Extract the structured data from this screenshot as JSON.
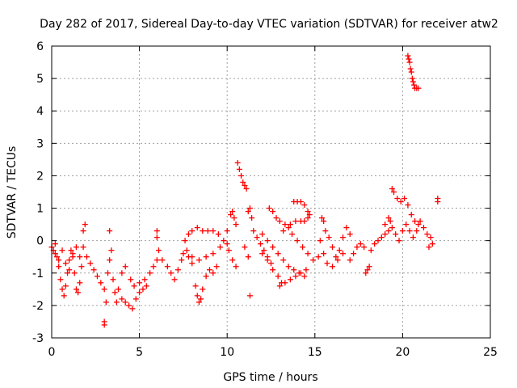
{
  "chart_data": {
    "type": "scatter",
    "title": "Day 282 of 2017, Sidereal Day-to-day VTEC variation (SDTVAR) for receiver atw2",
    "xlabel": "GPS time / hours",
    "ylabel": "SDTVAR / TECUs",
    "xlim": [
      0,
      25
    ],
    "ylim": [
      -3,
      6
    ],
    "xticks": [
      0,
      5,
      10,
      15,
      20,
      25
    ],
    "yticks": [
      -3,
      -2,
      -1,
      0,
      1,
      2,
      3,
      4,
      5,
      6
    ],
    "grid": true,
    "marker": "+",
    "color": "#ff0000",
    "series": [
      {
        "name": "atw2",
        "points": [
          [
            0.0,
            -0.2
          ],
          [
            0.1,
            -0.3
          ],
          [
            0.2,
            -0.1
          ],
          [
            0.3,
            -0.5
          ],
          [
            0.4,
            -0.8
          ],
          [
            0.5,
            -1.2
          ],
          [
            0.6,
            -1.5
          ],
          [
            0.7,
            -1.7
          ],
          [
            0.8,
            -1.4
          ],
          [
            0.9,
            -1.0
          ],
          [
            1.0,
            -0.6
          ],
          [
            1.1,
            -0.3
          ],
          [
            1.2,
            -0.5
          ],
          [
            1.3,
            -1.0
          ],
          [
            1.4,
            -1.5
          ],
          [
            1.5,
            -1.6
          ],
          [
            1.6,
            -1.3
          ],
          [
            1.7,
            -0.8
          ],
          [
            0.2,
            -0.4
          ],
          [
            0.4,
            -0.6
          ],
          [
            0.6,
            -0.3
          ],
          [
            0.8,
            -0.7
          ],
          [
            1.0,
            -0.9
          ],
          [
            1.2,
            -0.4
          ],
          [
            1.4,
            -0.2
          ],
          [
            1.6,
            -0.5
          ],
          [
            1.8,
            0.3
          ],
          [
            1.9,
            0.5
          ],
          [
            1.8,
            -0.2
          ],
          [
            2.0,
            -0.5
          ],
          [
            2.2,
            -0.7
          ],
          [
            2.4,
            -0.9
          ],
          [
            2.6,
            -1.1
          ],
          [
            2.8,
            -1.3
          ],
          [
            3.0,
            -1.5
          ],
          [
            3.1,
            -1.9
          ],
          [
            3.0,
            -2.5
          ],
          [
            3.0,
            -2.6
          ],
          [
            3.2,
            -1.0
          ],
          [
            3.3,
            -0.6
          ],
          [
            3.4,
            -0.3
          ],
          [
            3.3,
            0.3
          ],
          [
            3.5,
            -1.2
          ],
          [
            3.6,
            -1.6
          ],
          [
            3.7,
            -1.9
          ],
          [
            3.8,
            -1.5
          ],
          [
            4.0,
            -1.8
          ],
          [
            4.2,
            -1.9
          ],
          [
            4.4,
            -2.0
          ],
          [
            4.6,
            -2.1
          ],
          [
            4.8,
            -1.8
          ],
          [
            5.0,
            -1.6
          ],
          [
            5.2,
            -1.5
          ],
          [
            5.4,
            -1.4
          ],
          [
            4.0,
            -1.0
          ],
          [
            4.2,
            -0.8
          ],
          [
            4.5,
            -1.2
          ],
          [
            4.7,
            -1.4
          ],
          [
            5.0,
            -1.3
          ],
          [
            5.3,
            -1.2
          ],
          [
            5.6,
            -1.0
          ],
          [
            5.8,
            -0.8
          ],
          [
            6.0,
            -0.6
          ],
          [
            6.0,
            0.1
          ],
          [
            6.0,
            0.3
          ],
          [
            6.1,
            -0.3
          ],
          [
            6.3,
            -0.6
          ],
          [
            6.6,
            -0.8
          ],
          [
            6.8,
            -1.0
          ],
          [
            7.0,
            -1.2
          ],
          [
            7.2,
            -0.9
          ],
          [
            7.4,
            -0.6
          ],
          [
            7.5,
            -0.4
          ],
          [
            7.8,
            -0.5
          ],
          [
            8.0,
            -0.7
          ],
          [
            8.2,
            -1.4
          ],
          [
            8.3,
            -1.7
          ],
          [
            8.4,
            -1.9
          ],
          [
            8.5,
            -1.8
          ],
          [
            8.6,
            -1.5
          ],
          [
            8.8,
            -1.1
          ],
          [
            9.0,
            -0.9
          ],
          [
            9.2,
            -1.0
          ],
          [
            9.4,
            -0.8
          ],
          [
            7.6,
            0.0
          ],
          [
            7.8,
            0.2
          ],
          [
            8.0,
            0.3
          ],
          [
            8.3,
            0.4
          ],
          [
            8.6,
            0.3
          ],
          [
            8.9,
            0.3
          ],
          [
            9.2,
            0.3
          ],
          [
            9.5,
            0.2
          ],
          [
            9.8,
            0.0
          ],
          [
            7.7,
            -0.3
          ],
          [
            8.0,
            -0.5
          ],
          [
            8.4,
            -0.6
          ],
          [
            8.8,
            -0.5
          ],
          [
            9.2,
            -0.4
          ],
          [
            9.6,
            -0.2
          ],
          [
            10.0,
            -0.1
          ],
          [
            10.2,
            0.8
          ],
          [
            10.3,
            0.9
          ],
          [
            10.4,
            0.7
          ],
          [
            10.5,
            0.5
          ],
          [
            10.0,
            0.3
          ],
          [
            10.1,
            -0.3
          ],
          [
            10.3,
            -0.6
          ],
          [
            10.5,
            -0.8
          ],
          [
            10.6,
            2.4
          ],
          [
            10.7,
            2.2
          ],
          [
            10.8,
            2.0
          ],
          [
            10.9,
            1.8
          ],
          [
            11.0,
            1.7
          ],
          [
            11.1,
            1.6
          ],
          [
            11.0,
            -0.2
          ],
          [
            11.2,
            -0.5
          ],
          [
            11.3,
            -1.7
          ],
          [
            11.2,
            0.9
          ],
          [
            11.3,
            1.0
          ],
          [
            11.4,
            0.7
          ],
          [
            11.5,
            0.3
          ],
          [
            11.7,
            0.1
          ],
          [
            11.9,
            -0.1
          ],
          [
            12.1,
            -0.3
          ],
          [
            12.3,
            -0.5
          ],
          [
            12.5,
            -0.7
          ],
          [
            12.4,
            1.0
          ],
          [
            12.6,
            0.9
          ],
          [
            12.8,
            0.7
          ],
          [
            13.0,
            0.6
          ],
          [
            13.3,
            0.5
          ],
          [
            13.6,
            0.5
          ],
          [
            13.9,
            0.6
          ],
          [
            14.2,
            0.6
          ],
          [
            14.4,
            0.6
          ],
          [
            14.6,
            0.7
          ],
          [
            14.7,
            0.8
          ],
          [
            12.0,
            0.2
          ],
          [
            12.3,
            0.0
          ],
          [
            12.6,
            -0.2
          ],
          [
            12.9,
            -0.4
          ],
          [
            13.2,
            -0.6
          ],
          [
            13.5,
            -0.8
          ],
          [
            13.8,
            -0.9
          ],
          [
            14.1,
            -1.0
          ],
          [
            14.4,
            -1.1
          ],
          [
            13.0,
            -1.4
          ],
          [
            13.3,
            -1.3
          ],
          [
            13.6,
            -1.2
          ],
          [
            13.9,
            -1.1
          ],
          [
            14.2,
            -1.0
          ],
          [
            14.5,
            -0.9
          ],
          [
            12.0,
            -0.4
          ],
          [
            12.3,
            -0.6
          ],
          [
            12.6,
            -0.9
          ],
          [
            12.9,
            -1.1
          ],
          [
            13.1,
            -1.3
          ],
          [
            13.8,
            1.2
          ],
          [
            14.0,
            1.2
          ],
          [
            14.2,
            1.2
          ],
          [
            14.4,
            1.1
          ],
          [
            14.6,
            0.9
          ],
          [
            13.2,
            0.3
          ],
          [
            13.5,
            0.4
          ],
          [
            13.7,
            0.2
          ],
          [
            14.0,
            0.0
          ],
          [
            14.3,
            -0.2
          ],
          [
            14.6,
            -0.4
          ],
          [
            14.9,
            -0.6
          ],
          [
            15.2,
            -0.5
          ],
          [
            15.4,
            0.7
          ],
          [
            15.5,
            0.6
          ],
          [
            15.6,
            0.3
          ],
          [
            15.8,
            0.1
          ],
          [
            16.0,
            -0.2
          ],
          [
            16.2,
            -0.5
          ],
          [
            16.4,
            -0.3
          ],
          [
            16.6,
            0.1
          ],
          [
            16.8,
            0.4
          ],
          [
            17.0,
            0.2
          ],
          [
            15.3,
            0.0
          ],
          [
            15.5,
            -0.4
          ],
          [
            15.7,
            -0.7
          ],
          [
            16.0,
            -0.8
          ],
          [
            16.3,
            -0.6
          ],
          [
            16.6,
            -0.4
          ],
          [
            17.0,
            -0.6
          ],
          [
            17.2,
            -0.4
          ],
          [
            17.4,
            -0.2
          ],
          [
            17.6,
            -0.1
          ],
          [
            17.8,
            -0.2
          ],
          [
            17.9,
            -1.0
          ],
          [
            18.0,
            -0.9
          ],
          [
            18.1,
            -0.8
          ],
          [
            18.2,
            -0.3
          ],
          [
            18.4,
            -0.1
          ],
          [
            18.6,
            0.0
          ],
          [
            18.8,
            0.1
          ],
          [
            19.0,
            0.2
          ],
          [
            19.2,
            0.3
          ],
          [
            19.3,
            0.6
          ],
          [
            19.4,
            1.6
          ],
          [
            19.5,
            1.5
          ],
          [
            19.7,
            1.3
          ],
          [
            19.9,
            1.2
          ],
          [
            20.1,
            1.3
          ],
          [
            20.3,
            1.1
          ],
          [
            20.5,
            0.8
          ],
          [
            20.7,
            0.6
          ],
          [
            20.9,
            0.5
          ],
          [
            19.0,
            0.5
          ],
          [
            19.2,
            0.7
          ],
          [
            19.4,
            0.4
          ],
          [
            19.6,
            0.2
          ],
          [
            19.8,
            0.0
          ],
          [
            20.0,
            0.3
          ],
          [
            20.2,
            0.5
          ],
          [
            20.4,
            0.3
          ],
          [
            20.6,
            0.1
          ],
          [
            20.8,
            0.3
          ],
          [
            21.0,
            0.6
          ],
          [
            21.2,
            0.4
          ],
          [
            21.4,
            0.2
          ],
          [
            21.6,
            0.1
          ],
          [
            21.7,
            -0.1
          ],
          [
            21.5,
            -0.2
          ],
          [
            20.3,
            5.7
          ],
          [
            20.35,
            5.6
          ],
          [
            20.4,
            5.5
          ],
          [
            20.45,
            5.3
          ],
          [
            20.5,
            5.2
          ],
          [
            20.55,
            5.0
          ],
          [
            20.6,
            4.9
          ],
          [
            20.65,
            4.8
          ],
          [
            20.7,
            4.7
          ],
          [
            20.8,
            4.7
          ],
          [
            20.9,
            4.7
          ],
          [
            22.0,
            1.3
          ],
          [
            22.0,
            1.2
          ]
        ]
      }
    ]
  }
}
